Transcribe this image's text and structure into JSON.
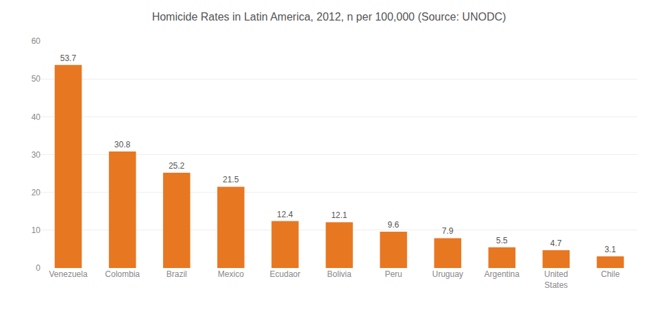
{
  "chart_data": {
    "type": "bar",
    "title": "Homicide Rates in Latin America, 2012, n per 100,000 (Source: UNODC)",
    "categories": [
      "Venezuela",
      "Colombia",
      "Brazil",
      "Mexico",
      "Ecudaor",
      "Bolivia",
      "Peru",
      "Uruguay",
      "Argentina",
      "United\nStates",
      "Chile"
    ],
    "values": [
      53.7,
      30.8,
      25.2,
      21.5,
      12.4,
      12.1,
      9.6,
      7.9,
      5.5,
      4.7,
      3.1
    ],
    "color": "#E87722",
    "ylim": [
      0,
      60
    ],
    "yticks": [
      0,
      10,
      20,
      30,
      40,
      50,
      60
    ],
    "grid": true,
    "data_labels": true
  }
}
